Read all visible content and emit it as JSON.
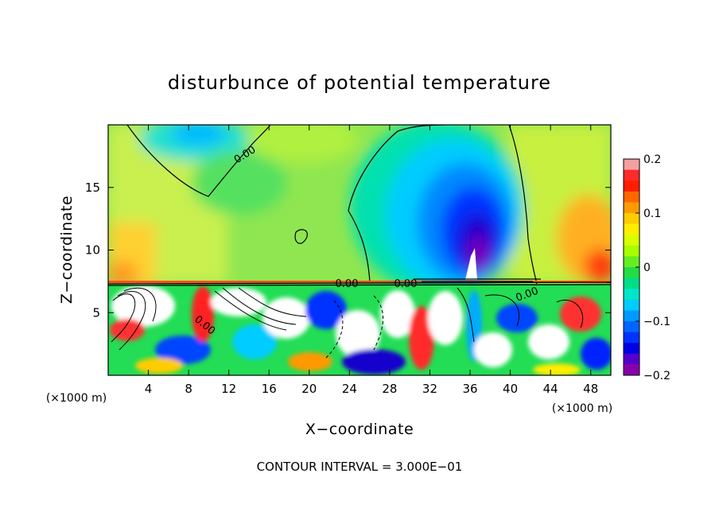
{
  "chart_data": {
    "type": "heatmap",
    "title": "disturbunce of potential temperature",
    "xlabel": "X−coordinate",
    "ylabel": "Z−coordinate",
    "x_unit_left": "(×1000 m)",
    "x_unit_right": "(×1000 m)",
    "footer": "CONTOUR INTERVAL = 3.000E−01",
    "xlim": [
      0,
      50
    ],
    "ylim": [
      0,
      20
    ],
    "x_ticks": [
      {
        "value": 4,
        "label": "4"
      },
      {
        "value": 8,
        "label": "8"
      },
      {
        "value": 12,
        "label": "12"
      },
      {
        "value": 16,
        "label": "16"
      },
      {
        "value": 20,
        "label": "20"
      },
      {
        "value": 24,
        "label": "24"
      },
      {
        "value": 28,
        "label": "28"
      },
      {
        "value": 32,
        "label": "32"
      },
      {
        "value": 36,
        "label": "36"
      },
      {
        "value": 40,
        "label": "40"
      },
      {
        "value": 44,
        "label": "44"
      },
      {
        "value": 48,
        "label": "48"
      }
    ],
    "y_ticks": [
      {
        "value": 5,
        "label": "5"
      },
      {
        "value": 10,
        "label": "10"
      },
      {
        "value": 15,
        "label": "15"
      }
    ],
    "contour_labels": [
      "0.00",
      "0.00",
      "0.00",
      "0.00",
      "0.00"
    ],
    "colorbar": {
      "min": -0.2,
      "max": 0.2,
      "ticks": [
        {
          "value": 0.2,
          "label": "0.2"
        },
        {
          "value": 0.1,
          "label": "0.1"
        },
        {
          "value": 0,
          "label": "0"
        },
        {
          "value": -0.1,
          "label": "−0.1"
        },
        {
          "value": -0.2,
          "label": "−0.2"
        }
      ],
      "colors": [
        "#f5a0a0",
        "#ff2a2a",
        "#ff1d00",
        "#ff6600",
        "#ff9a00",
        "#ffcc00",
        "#ffee00",
        "#d9ff00",
        "#a8ff00",
        "#66ee22",
        "#22dd44",
        "#00dd88",
        "#00e6c8",
        "#00ccff",
        "#0099ff",
        "#0066ff",
        "#0033ff",
        "#0000e6",
        "#5500cc",
        "#8800aa"
      ]
    }
  }
}
